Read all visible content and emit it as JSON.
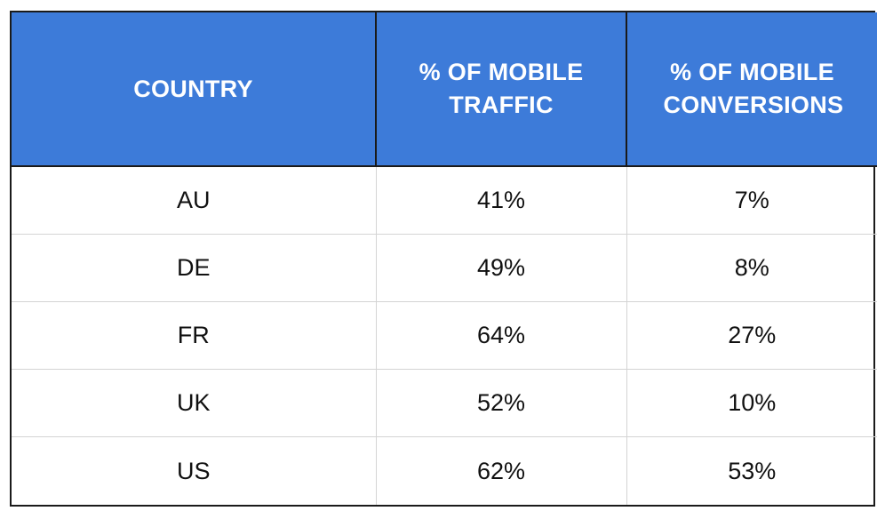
{
  "chart_data": {
    "type": "table",
    "columns": [
      "COUNTRY",
      "% OF MOBILE TRAFFIC",
      "% OF MOBILE CONVERSIONS"
    ],
    "header_colors": {
      "header_bg": "#3d7bd9",
      "header_text": "#ffffff"
    },
    "rows": [
      {
        "country": "AU",
        "mobile_traffic": "41%",
        "mobile_conversions": "7%"
      },
      {
        "country": "DE",
        "mobile_traffic": "49%",
        "mobile_conversions": "8%"
      },
      {
        "country": "FR",
        "mobile_traffic": "64%",
        "mobile_conversions": "27%"
      },
      {
        "country": "UK",
        "mobile_traffic": "52%",
        "mobile_conversions": "10%"
      },
      {
        "country": "US",
        "mobile_traffic": "62%",
        "mobile_conversions": "53%"
      }
    ]
  }
}
